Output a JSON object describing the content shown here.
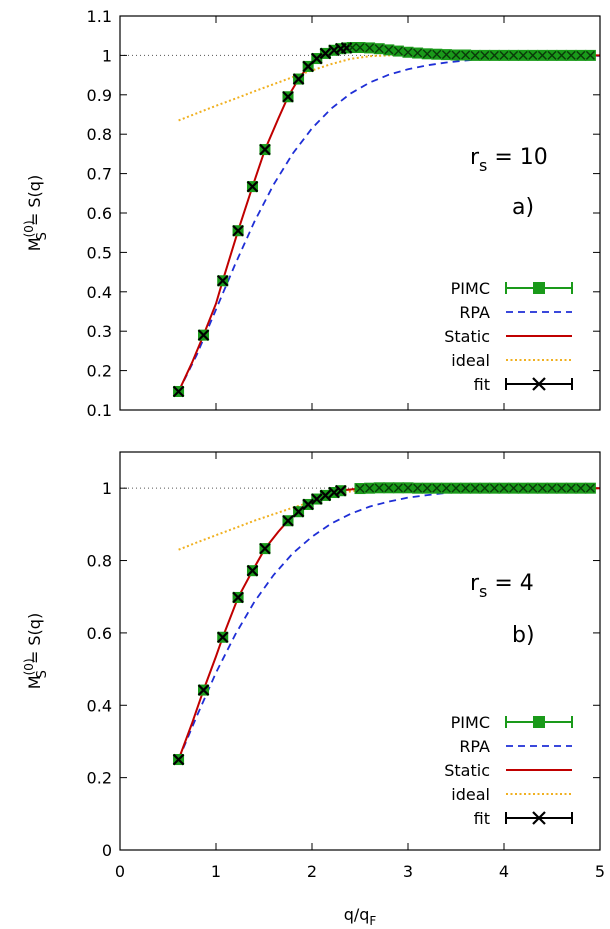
{
  "colors": {
    "pimc": "#1a9a1a",
    "rpa": "#1f2fd6",
    "static": "#c00000",
    "ideal": "#f0b020",
    "fit": "#000000",
    "ref": "#666666"
  },
  "chart_data": [
    {
      "type": "line",
      "panel_label": "a)",
      "rs_label": "r",
      "rs_sub": "s",
      "rs_value": " = 10",
      "ylabel": "S(q)",
      "ylabel_M": "M",
      "ylabel_sup": "(0)",
      "ylabel_sub": "S",
      "ylabel_eq": "= ",
      "xlim": [
        0,
        5
      ],
      "ylim": [
        0.1,
        1.1
      ],
      "xticks": [
        0,
        1,
        2,
        3,
        4,
        5
      ],
      "xtick_labels": [
        "",
        "",
        "",
        "",
        "",
        ""
      ],
      "yticks": [
        0.1,
        0.2,
        0.3,
        0.4,
        0.5,
        0.6,
        0.7,
        0.8,
        0.9,
        1.0,
        1.1
      ],
      "ytick_labels": [
        "0.1",
        "0.2",
        "0.3",
        "0.4",
        "0.5",
        "0.6",
        "0.7",
        "0.8",
        "0.9",
        "1",
        "1.1"
      ],
      "reference_y": 1.0,
      "legend_position": "bottom-right",
      "legend": [
        "PIMC",
        "RPA",
        "Static",
        "ideal",
        "fit"
      ],
      "series": [
        {
          "name": "PIMC",
          "kind": "markers-errorbar",
          "x": [
            0.61,
            0.87,
            1.07,
            1.23,
            1.38,
            1.51,
            1.75,
            1.86,
            1.96,
            2.05,
            2.14,
            2.23,
            2.3,
            2.36,
            2.42,
            2.5,
            2.6,
            2.7,
            2.8,
            2.9,
            3.0,
            3.1,
            3.2,
            3.3,
            3.4,
            3.5,
            3.6,
            3.7,
            3.8,
            3.9,
            4.0,
            4.1,
            4.2,
            4.3,
            4.4,
            4.5,
            4.6,
            4.7,
            4.8,
            4.9
          ],
          "y": [
            0.147,
            0.29,
            0.428,
            0.555,
            0.667,
            0.761,
            0.895,
            0.94,
            0.972,
            0.992,
            1.005,
            1.013,
            1.017,
            1.019,
            1.02,
            1.02,
            1.019,
            1.017,
            1.014,
            1.011,
            1.008,
            1.006,
            1.004,
            1.003,
            1.002,
            1.001,
            1.001,
            1.0,
            1.0,
            1.0,
            1.0,
            1.0,
            1.0,
            1.0,
            1.0,
            1.0,
            1.0,
            1.0,
            1.0,
            1.0
          ]
        },
        {
          "name": "RPA",
          "kind": "dashed",
          "x": [
            0.61,
            0.8,
            1.0,
            1.2,
            1.4,
            1.6,
            1.8,
            2.0,
            2.2,
            2.4,
            2.6,
            2.8,
            3.0,
            3.2,
            3.4,
            3.6,
            3.8,
            4.0,
            4.2,
            4.4,
            4.6,
            4.8,
            5.0
          ],
          "y": [
            0.147,
            0.24,
            0.355,
            0.47,
            0.578,
            0.672,
            0.751,
            0.815,
            0.865,
            0.903,
            0.931,
            0.951,
            0.965,
            0.975,
            0.982,
            0.987,
            0.991,
            0.994,
            0.996,
            0.997,
            0.998,
            0.999,
            0.999
          ]
        },
        {
          "name": "Static",
          "kind": "solid",
          "x": [
            0.61,
            0.75,
            0.87,
            1.0,
            1.07,
            1.23,
            1.38,
            1.51,
            1.65,
            1.75,
            1.86,
            1.96,
            2.05,
            2.14,
            2.23,
            2.36,
            2.5,
            2.6,
            2.7,
            2.9,
            3.1,
            3.3,
            3.5,
            3.8,
            4.2,
            4.6,
            5.0
          ],
          "y": [
            0.147,
            0.22,
            0.29,
            0.37,
            0.428,
            0.555,
            0.667,
            0.761,
            0.84,
            0.895,
            0.94,
            0.972,
            0.992,
            1.005,
            1.013,
            1.019,
            1.02,
            1.02,
            1.017,
            1.011,
            1.006,
            1.003,
            1.001,
            1.0,
            1.0,
            1.0,
            1.0
          ]
        },
        {
          "name": "ideal",
          "kind": "dotted",
          "x": [
            0.61,
            0.8,
            1.0,
            1.2,
            1.4,
            1.6,
            1.8,
            2.0,
            2.2,
            2.4,
            2.6,
            2.8,
            3.0,
            3.2,
            3.4,
            3.6,
            3.8,
            4.0,
            4.2,
            4.4,
            4.6,
            4.8,
            5.0
          ],
          "y": [
            0.835,
            0.853,
            0.872,
            0.89,
            0.909,
            0.927,
            0.945,
            0.962,
            0.978,
            0.991,
            0.998,
            1.0,
            1.0,
            1.0,
            1.0,
            1.0,
            1.0,
            1.0,
            1.0,
            1.0,
            1.0,
            1.0,
            1.0
          ]
        },
        {
          "name": "fit",
          "kind": "x-markers",
          "x": [
            0.61,
            0.87,
            1.07,
            1.23,
            1.38,
            1.51,
            1.75,
            1.86,
            1.96,
            2.05,
            2.14,
            2.23,
            2.3,
            2.36
          ],
          "y": [
            0.147,
            0.29,
            0.428,
            0.555,
            0.667,
            0.761,
            0.895,
            0.94,
            0.972,
            0.992,
            1.005,
            1.013,
            1.017,
            1.019
          ]
        }
      ]
    },
    {
      "type": "line",
      "panel_label": "b)",
      "rs_label": "r",
      "rs_sub": "s",
      "rs_value": " = 4",
      "ylabel": "S(q)",
      "ylabel_M": "M",
      "ylabel_sup": "(0)",
      "ylabel_sub": "S",
      "ylabel_eq": "= ",
      "xlabel": "q/q",
      "xlabel_sub": "F",
      "xlim": [
        0,
        5
      ],
      "ylim": [
        0,
        1.1
      ],
      "xticks": [
        0,
        1,
        2,
        3,
        4,
        5
      ],
      "xtick_labels": [
        "0",
        "1",
        "2",
        "3",
        "4",
        "5"
      ],
      "yticks": [
        0,
        0.2,
        0.4,
        0.6,
        0.8,
        1.0
      ],
      "ytick_labels": [
        "0",
        "0.2",
        "0.4",
        "0.6",
        "0.8",
        "1"
      ],
      "reference_y": 1.0,
      "legend_position": "bottom-right",
      "legend": [
        "PIMC",
        "RPA",
        "Static",
        "ideal",
        "fit"
      ],
      "series": [
        {
          "name": "PIMC",
          "kind": "markers-errorbar",
          "x": [
            0.61,
            0.87,
            1.07,
            1.23,
            1.38,
            1.51,
            1.75,
            1.86,
            1.96,
            2.05,
            2.14,
            2.23,
            2.3,
            2.5,
            2.6,
            2.7,
            2.8,
            2.9,
            3.0,
            3.1,
            3.2,
            3.3,
            3.4,
            3.5,
            3.6,
            3.7,
            3.8,
            3.9,
            4.0,
            4.1,
            4.2,
            4.3,
            4.4,
            4.5,
            4.6,
            4.7,
            4.8,
            4.9
          ],
          "y": [
            0.25,
            0.442,
            0.588,
            0.698,
            0.772,
            0.833,
            0.91,
            0.935,
            0.955,
            0.97,
            0.98,
            0.988,
            0.993,
            0.999,
            1.0,
            1.001,
            1.001,
            1.001,
            1.001,
            1.0,
            1.0,
            1.0,
            1.0,
            1.0,
            1.0,
            1.0,
            1.0,
            1.0,
            1.0,
            1.0,
            1.0,
            1.0,
            1.0,
            1.0,
            1.0,
            1.0,
            1.0,
            1.0
          ]
        },
        {
          "name": "RPA",
          "kind": "dashed",
          "x": [
            0.61,
            0.8,
            1.0,
            1.2,
            1.4,
            1.6,
            1.8,
            2.0,
            2.2,
            2.4,
            2.6,
            2.8,
            3.0,
            3.2,
            3.4,
            3.6,
            3.8,
            4.0,
            4.2,
            4.4,
            4.6,
            4.8,
            5.0
          ],
          "y": [
            0.25,
            0.37,
            0.49,
            0.595,
            0.686,
            0.76,
            0.82,
            0.866,
            0.902,
            0.929,
            0.949,
            0.963,
            0.974,
            0.981,
            0.987,
            0.991,
            0.994,
            0.996,
            0.997,
            0.998,
            0.999,
            0.999,
            1.0
          ]
        },
        {
          "name": "Static",
          "kind": "solid",
          "x": [
            0.61,
            0.75,
            0.87,
            1.0,
            1.07,
            1.23,
            1.38,
            1.51,
            1.65,
            1.75,
            1.86,
            1.96,
            2.05,
            2.14,
            2.23,
            2.35,
            2.5,
            2.7,
            3.0,
            3.5,
            4.0,
            4.5,
            5.0
          ],
          "y": [
            0.25,
            0.35,
            0.442,
            0.535,
            0.588,
            0.698,
            0.772,
            0.833,
            0.88,
            0.91,
            0.935,
            0.955,
            0.97,
            0.98,
            0.988,
            0.995,
            0.999,
            1.001,
            1.001,
            1.0,
            1.0,
            1.0,
            1.0
          ]
        },
        {
          "name": "ideal",
          "kind": "dotted",
          "x": [
            0.61,
            0.8,
            1.0,
            1.2,
            1.4,
            1.6,
            1.8,
            2.0,
            2.2,
            2.4,
            2.6,
            2.8,
            3.0,
            3.5,
            4.0,
            4.5,
            5.0
          ],
          "y": [
            0.83,
            0.85,
            0.87,
            0.89,
            0.91,
            0.928,
            0.946,
            0.963,
            0.978,
            0.991,
            0.998,
            1.0,
            1.0,
            1.0,
            1.0,
            1.0,
            1.0
          ]
        },
        {
          "name": "fit",
          "kind": "x-markers",
          "x": [
            0.61,
            0.87,
            1.07,
            1.23,
            1.38,
            1.51,
            1.75,
            1.86,
            1.96,
            2.05,
            2.14,
            2.23,
            2.3
          ],
          "y": [
            0.25,
            0.442,
            0.588,
            0.698,
            0.772,
            0.833,
            0.91,
            0.935,
            0.955,
            0.97,
            0.98,
            0.988,
            0.993
          ]
        }
      ]
    }
  ]
}
